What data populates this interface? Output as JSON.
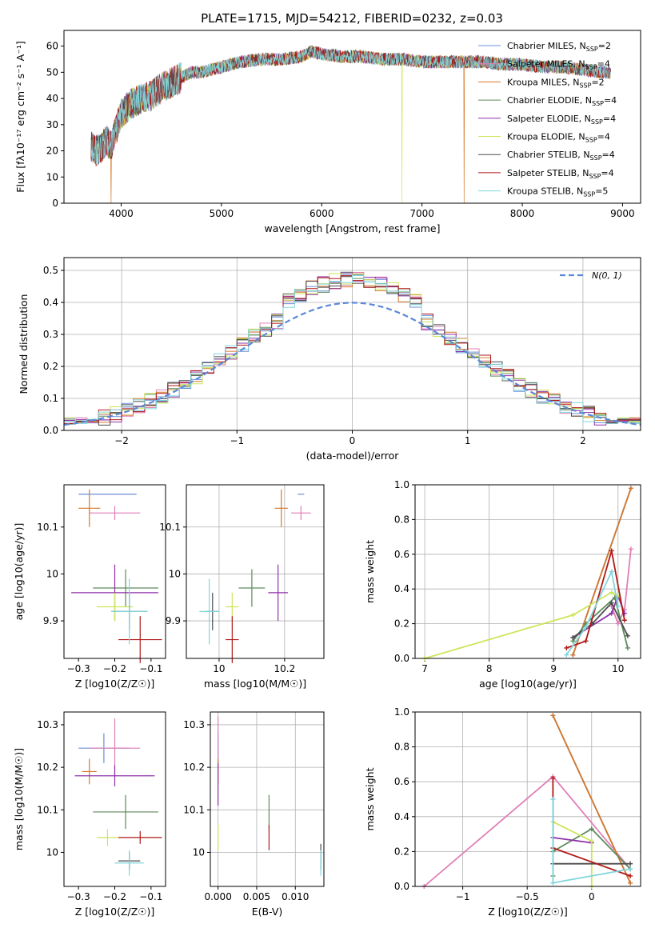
{
  "title": "PLATE=1715, MJD=54212, FIBERID=0232, z=0.03",
  "models": [
    {
      "label": "Chabrier MILES, N_SSP=2",
      "color": "#6a8fd8"
    },
    {
      "label": "Salpeter MILES, N_SSP=4",
      "color": "#e07fb8"
    },
    {
      "label": "Kroupa MILES, N_SSP=2",
      "color": "#d6782a"
    },
    {
      "label": "Chabrier ELODIE, N_SSP=4",
      "color": "#5e8a5a"
    },
    {
      "label": "Salpeter ELODIE, N_SSP=4",
      "color": "#8e30a8"
    },
    {
      "label": "Kroupa ELODIE, N_SSP=4",
      "color": "#cce65a"
    },
    {
      "label": "Chabrier STELIB, N_SSP=4",
      "color": "#4c4c4c"
    },
    {
      "label": "Salpeter STELIB, N_SSP=4",
      "color": "#b01818"
    },
    {
      "label": "Kroupa STELIB, N_SSP=5",
      "color": "#7fd6dc"
    }
  ],
  "chart_data": [
    {
      "id": "spectrum",
      "type": "line",
      "xlabel": "wavelength [Angstrom, rest frame]",
      "ylabel": "Flux [fλ10⁻¹⁷ erg cm⁻² s⁻¹ A⁻¹]",
      "xlim": [
        3430,
        9180
      ],
      "ylim": [
        0,
        66
      ],
      "xticks": [
        4000,
        5000,
        6000,
        7000,
        8000,
        9000
      ],
      "yticks": [
        0,
        10,
        20,
        30,
        40,
        50,
        60
      ],
      "envelope": {
        "x": [
          3700,
          3750,
          3800,
          3850,
          3900,
          3950,
          4000,
          4100,
          4200,
          4300,
          4400,
          4500,
          4600,
          4700,
          4800,
          4900,
          5000,
          5200,
          5400,
          5600,
          5800,
          5900,
          6000,
          6200,
          6400,
          6600,
          6800,
          7000,
          7200,
          7400,
          7600,
          7800,
          8000,
          8200,
          8400,
          8600,
          8800,
          8880
        ],
        "y": [
          22,
          20,
          21,
          24,
          22,
          28,
          34,
          38,
          40,
          41,
          44,
          46,
          48,
          50,
          50,
          51,
          52,
          54,
          55,
          55,
          56,
          58,
          57,
          56,
          56,
          55,
          55,
          54,
          54,
          54,
          54,
          53,
          53,
          52,
          52,
          51,
          50,
          50
        ]
      },
      "dropouts": [
        {
          "x": 3900,
          "model": 2
        },
        {
          "x": 6800,
          "model": 5
        },
        {
          "x": 7420,
          "model": 2
        }
      ],
      "grid": false,
      "legend": "right"
    },
    {
      "id": "residuals",
      "type": "histogram",
      "xlabel": "(data-model)/error",
      "ylabel": "Normed distribution",
      "xlim": [
        -2.5,
        2.5
      ],
      "ylim": [
        0,
        0.54
      ],
      "xticks": [
        -2,
        -1,
        0,
        1,
        2
      ],
      "yticks": [
        0,
        0.1,
        0.2,
        0.3,
        0.4,
        0.5
      ],
      "gaussian_label": "N(0, 1)",
      "grid": true,
      "legend": "top-right"
    },
    {
      "id": "age_vs_Z",
      "type": "scatter",
      "xlabel": "Z [log10(Z/Z☉)]",
      "ylabel": "age  [log10(age/yr)]",
      "xlim": [
        -0.34,
        -0.06
      ],
      "ylim": [
        9.82,
        10.19
      ],
      "xticks": [
        -0.3,
        -0.2,
        -0.1
      ],
      "yticks": [
        9.9,
        10.0,
        10.1
      ],
      "grid": false,
      "points": [
        {
          "x": -0.22,
          "y": 10.17,
          "xerr": 0.08,
          "yerr": 0,
          "model": 0
        },
        {
          "x": -0.2,
          "y": 10.13,
          "xerr": 0.07,
          "yerr": 0.015,
          "model": 1
        },
        {
          "x": -0.27,
          "y": 10.14,
          "xerr": 0.03,
          "yerr": 0.04,
          "model": 2
        },
        {
          "x": -0.17,
          "y": 9.97,
          "xerr": 0.09,
          "yerr": 0.04,
          "model": 3
        },
        {
          "x": -0.2,
          "y": 9.96,
          "xerr": 0.12,
          "yerr": 0.06,
          "model": 4
        },
        {
          "x": -0.2,
          "y": 9.93,
          "xerr": 0.05,
          "yerr": 0.03,
          "model": 5
        },
        {
          "x": -0.16,
          "y": 9.92,
          "xerr": 0.05,
          "yerr": 0.04,
          "model": 6
        },
        {
          "x": -0.13,
          "y": 9.86,
          "xerr": 0.06,
          "yerr": 0.05,
          "model": 7
        },
        {
          "x": -0.16,
          "y": 9.92,
          "xerr": 0.05,
          "yerr": 0.07,
          "model": 8
        }
      ]
    },
    {
      "id": "age_vs_mass",
      "type": "scatter",
      "xlabel": "mass [log10(M/M☉)]",
      "ylabel": "",
      "xlim": [
        9.9,
        10.32
      ],
      "ylim": [
        9.82,
        10.19
      ],
      "xticks": [
        10.0,
        10.2
      ],
      "yticks": [
        9.9,
        10.0,
        10.1
      ],
      "grid": true,
      "points": [
        {
          "x": 10.25,
          "y": 10.17,
          "xerr": 0.01,
          "yerr": 0,
          "model": 0
        },
        {
          "x": 10.25,
          "y": 10.13,
          "xerr": 0.03,
          "yerr": 0.015,
          "model": 1
        },
        {
          "x": 10.19,
          "y": 10.14,
          "xerr": 0.02,
          "yerr": 0.04,
          "model": 2
        },
        {
          "x": 10.1,
          "y": 9.97,
          "xerr": 0.04,
          "yerr": 0.04,
          "model": 3
        },
        {
          "x": 10.18,
          "y": 9.96,
          "xerr": 0.03,
          "yerr": 0.06,
          "model": 4
        },
        {
          "x": 10.04,
          "y": 9.93,
          "xerr": 0.02,
          "yerr": 0.03,
          "model": 5
        },
        {
          "x": 9.98,
          "y": 9.92,
          "xerr": 0.02,
          "yerr": 0.04,
          "model": 6
        },
        {
          "x": 10.04,
          "y": 9.86,
          "xerr": 0.02,
          "yerr": 0.05,
          "model": 7
        },
        {
          "x": 9.97,
          "y": 9.92,
          "xerr": 0.03,
          "yerr": 0.07,
          "model": 8
        }
      ]
    },
    {
      "id": "mw_vs_age",
      "type": "line",
      "xlabel": "age  [log10(age/yr)]",
      "ylabel": "mass weight",
      "xlim": [
        6.85,
        10.35
      ],
      "ylim": [
        0,
        1
      ],
      "xticks": [
        7,
        8,
        9,
        10
      ],
      "yticks": [
        0,
        0.2,
        0.4,
        0.6,
        0.8,
        1.0
      ],
      "grid": true,
      "series": [
        {
          "model": 0,
          "x": [
            9.3,
            10.2
          ],
          "y": [
            0.02,
            0.98
          ]
        },
        {
          "model": 1,
          "x": [
            9.9,
            10.0,
            10.1,
            10.2
          ],
          "y": [
            0.3,
            0.2,
            0.28,
            0.63
          ]
        },
        {
          "model": 2,
          "x": [
            9.3,
            10.2
          ],
          "y": [
            0.02,
            0.98
          ]
        },
        {
          "model": 3,
          "x": [
            9.3,
            9.5,
            9.95,
            10.15
          ],
          "y": [
            0.1,
            0.2,
            0.35,
            0.06
          ]
        },
        {
          "model": 4,
          "x": [
            9.3,
            9.9,
            10.0,
            10.1
          ],
          "y": [
            0.12,
            0.26,
            0.36,
            0.26
          ]
        },
        {
          "model": 5,
          "x": [
            7.0,
            9.3,
            9.9,
            10.0
          ],
          "y": [
            0.0,
            0.25,
            0.38,
            0.36
          ]
        },
        {
          "model": 6,
          "x": [
            9.3,
            9.6,
            9.9,
            10.15
          ],
          "y": [
            0.12,
            0.2,
            0.32,
            0.13
          ]
        },
        {
          "model": 7,
          "x": [
            9.2,
            9.5,
            9.9,
            10.1
          ],
          "y": [
            0.06,
            0.1,
            0.62,
            0.22
          ]
        },
        {
          "model": 8,
          "x": [
            9.2,
            9.5,
            9.9,
            10.0
          ],
          "y": [
            0.02,
            0.18,
            0.5,
            0.3
          ]
        }
      ]
    },
    {
      "id": "mass_vs_Z",
      "type": "scatter",
      "xlabel": "Z [log10(Z/Z☉)]",
      "ylabel": "mass [log10(M/M☉)]",
      "xlim": [
        -0.34,
        -0.06
      ],
      "ylim": [
        9.92,
        10.33
      ],
      "xticks": [
        -0.3,
        -0.2,
        -0.1
      ],
      "yticks": [
        10.0,
        10.1,
        10.2,
        10.3
      ],
      "grid": false,
      "points": [
        {
          "x": -0.23,
          "y": 10.245,
          "xerr": 0.07,
          "yerr": 0.035,
          "model": 0
        },
        {
          "x": -0.2,
          "y": 10.245,
          "xerr": 0.07,
          "yerr": 0.07,
          "model": 1
        },
        {
          "x": -0.27,
          "y": 10.19,
          "xerr": 0.02,
          "yerr": 0.03,
          "model": 2
        },
        {
          "x": -0.17,
          "y": 10.095,
          "xerr": 0.09,
          "yerr": 0.04,
          "model": 3
        },
        {
          "x": -0.2,
          "y": 10.18,
          "xerr": 0.11,
          "yerr": 0.025,
          "model": 4
        },
        {
          "x": -0.22,
          "y": 10.035,
          "xerr": 0.03,
          "yerr": 0.02,
          "model": 5
        },
        {
          "x": -0.16,
          "y": 9.98,
          "xerr": 0.03,
          "yerr": 0.02,
          "model": 6
        },
        {
          "x": -0.13,
          "y": 10.035,
          "xerr": 0.06,
          "yerr": 0.015,
          "model": 7
        },
        {
          "x": -0.16,
          "y": 9.975,
          "xerr": 0.04,
          "yerr": 0.03,
          "model": 8
        }
      ]
    },
    {
      "id": "mass_vs_ebv",
      "type": "scatter",
      "xlabel": "E(B-V)",
      "ylabel": "",
      "xlim": [
        -0.001,
        0.0137
      ],
      "ylim": [
        9.92,
        10.33
      ],
      "xticks": [
        0.0,
        0.005,
        0.01
      ],
      "xtick_labels": [
        "0.000",
        "0.005",
        "0.010"
      ],
      "yticks": [
        10.0,
        10.1,
        10.2,
        10.3
      ],
      "grid": true,
      "points": [
        {
          "x": 0.0,
          "y": 10.245,
          "xerr": 0,
          "yerr": 0.035,
          "model": 0
        },
        {
          "x": 0.0,
          "y": 10.27,
          "xerr": 0,
          "yerr": 0.05,
          "model": 1
        },
        {
          "x": 0.0,
          "y": 10.19,
          "xerr": 0,
          "yerr": 0.03,
          "model": 2
        },
        {
          "x": 0.0066,
          "y": 10.095,
          "xerr": 0,
          "yerr": 0.04,
          "model": 3
        },
        {
          "x": 0.0,
          "y": 10.16,
          "xerr": 0,
          "yerr": 0.05,
          "model": 4
        },
        {
          "x": 0.0,
          "y": 10.035,
          "xerr": 0,
          "yerr": 0.03,
          "model": 5
        },
        {
          "x": 0.0133,
          "y": 9.99,
          "xerr": 0,
          "yerr": 0.03,
          "model": 6
        },
        {
          "x": 0.0066,
          "y": 10.035,
          "xerr": 0,
          "yerr": 0.03,
          "model": 7
        },
        {
          "x": 0.0133,
          "y": 9.975,
          "xerr": 0,
          "yerr": 0.03,
          "model": 8
        }
      ]
    },
    {
      "id": "mw_vs_Z",
      "type": "line",
      "xlabel": "Z [log10(Z/Z☉)]",
      "ylabel": "mass weight",
      "xlim": [
        -1.37,
        0.38
      ],
      "ylim": [
        0,
        1
      ],
      "xticks": [
        -1.0,
        -0.5,
        0.0
      ],
      "yticks": [
        0,
        0.2,
        0.4,
        0.6,
        0.8,
        1.0
      ],
      "grid": true,
      "series": [
        {
          "model": 0,
          "x": [
            -0.3,
            0.3
          ],
          "y": [
            0.98,
            0.02
          ]
        },
        {
          "model": 1,
          "x": [
            -1.3,
            -0.3,
            0.3
          ],
          "y": [
            0.0,
            0.63,
            0.1
          ]
        },
        {
          "model": 2,
          "x": [
            -0.3,
            0.3
          ],
          "y": [
            0.98,
            0.02
          ]
        },
        {
          "model": 3,
          "x": [
            -0.3,
            -0.3,
            0.0,
            0.3
          ],
          "y": [
            0.06,
            0.2,
            0.33,
            0.1
          ]
        },
        {
          "model": 4,
          "x": [
            -0.3,
            0.0
          ],
          "y": [
            0.28,
            0.25
          ]
        },
        {
          "model": 5,
          "x": [
            -0.3,
            0.0,
            0.0
          ],
          "y": [
            0.37,
            0.26,
            0.0
          ]
        },
        {
          "model": 6,
          "x": [
            -0.3,
            0.3
          ],
          "y": [
            0.13,
            0.13
          ]
        },
        {
          "model": 7,
          "x": [
            -0.3,
            -0.3,
            0.3
          ],
          "y": [
            0.62,
            0.22,
            0.06
          ]
        },
        {
          "model": 8,
          "x": [
            -0.3,
            -0.3,
            0.3
          ],
          "y": [
            0.5,
            0.02,
            0.1
          ]
        }
      ]
    }
  ]
}
